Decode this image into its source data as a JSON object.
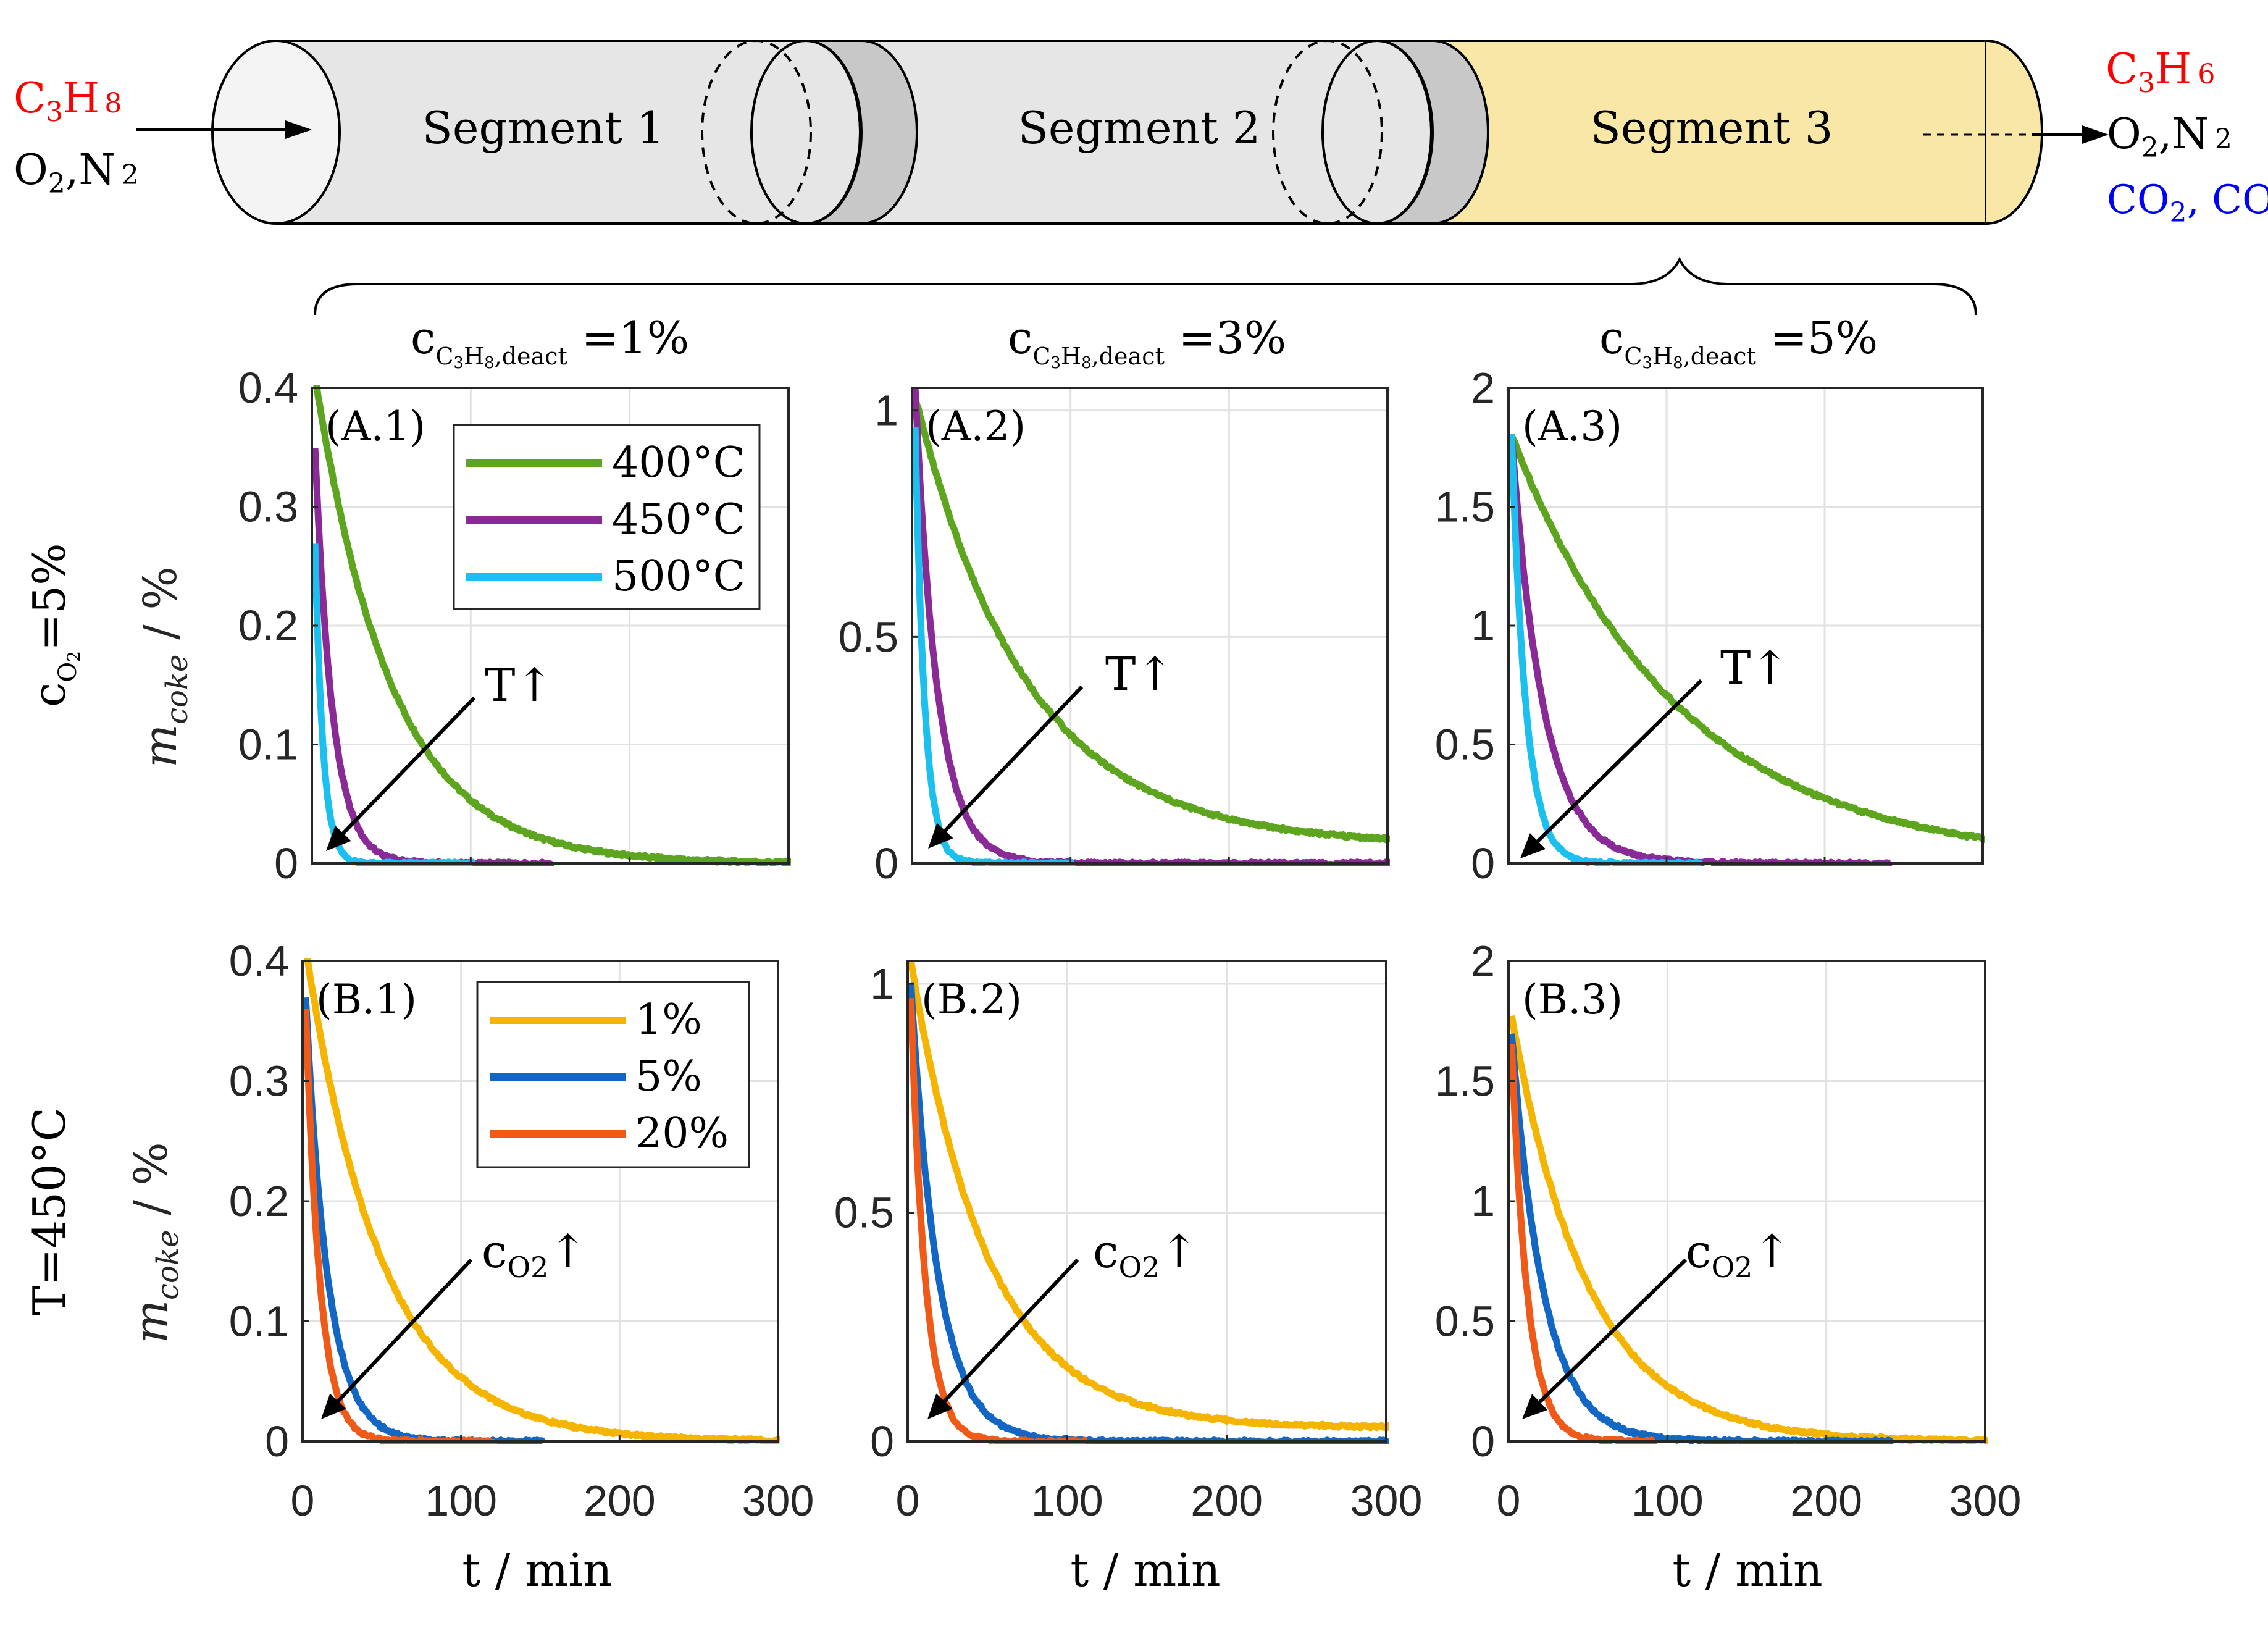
{
  "reactor": {
    "inlet": {
      "line1_main": "C",
      "line1_sub": "3",
      "line1_main2": "H",
      "line1_sub2": "8",
      "line2_main": "O",
      "line2_sub": "2",
      "line2_rest": ",N",
      "line2_sub2": "2"
    },
    "outlet": {
      "product_main": "C",
      "product_sub": "3",
      "product_main2": "H",
      "product_sub2": "6",
      "carrier_main": "O",
      "carrier_sub": "2",
      "carrier_rest": ",N",
      "carrier_sub2": "2",
      "oxides_main": "CO",
      "oxides_sub": "2",
      "oxides_rest": ", CO"
    },
    "segments": [
      "Segment 1",
      "Segment 2",
      "Segment 3"
    ],
    "colors": {
      "segment_grey": "#e6e6e6",
      "segment_dark": "#c8c8c8",
      "segment_active": "#f8e7a6",
      "red_text": "#ff0000",
      "blue_text": "#0000ff"
    }
  },
  "column_headers": [
    {
      "main": "c",
      "sub": "C",
      "sub2": "3",
      "sub3": "H",
      "sub4": "8",
      "sub5": ",deact",
      "value": " =1%"
    },
    {
      "main": "c",
      "sub": "C",
      "sub2": "3",
      "sub3": "H",
      "sub4": "8",
      "sub5": ",deact",
      "value": " =3%"
    },
    {
      "main": "c",
      "sub": "C",
      "sub2": "3",
      "sub3": "H",
      "sub4": "8",
      "sub5": ",deact",
      "value": " =5%"
    }
  ],
  "row_labels": [
    {
      "main": "c",
      "sub": "O",
      "sub2": "2",
      "value": "=5%"
    },
    {
      "text": "T=450°C"
    }
  ],
  "axis_labels": {
    "ylabel_main": "m",
    "ylabel_sub": "coke",
    "ylabel_unit": " / %",
    "xlabel": "t / min"
  },
  "annotations": {
    "top_row": "T↑",
    "bottom_row_main": "c",
    "bottom_row_sub": "O2",
    "bottom_row_arrow": "↑"
  },
  "chart_data": [
    {
      "id": "A.1",
      "type": "line",
      "label": "(A.1)",
      "ylim": [
        0,
        0.4
      ],
      "yticks": [
        0,
        0.1,
        0.2,
        0.3,
        0.4
      ],
      "ytick_labels": [
        "0",
        "0.1",
        "0.2",
        "0.3",
        "0.4"
      ],
      "xlim": [
        0,
        300
      ],
      "xticks": [
        0,
        100,
        200,
        300
      ],
      "xtick_labels": [],
      "series": [
        {
          "name": "400°C",
          "color": "#5ea51f",
          "y0": 0.41,
          "tau": 48,
          "tmax": 300
        },
        {
          "name": "450°C",
          "color": "#8a2a96",
          "y0": 0.35,
          "tau": 11,
          "tmax": 150
        },
        {
          "name": "500°C",
          "color": "#1cc0ee",
          "y0": 0.27,
          "tau": 5,
          "tmax": 100
        }
      ],
      "legend": {
        "position": "top-right",
        "entries": [
          "400°C",
          "450°C",
          "500°C"
        ]
      }
    },
    {
      "id": "A.2",
      "type": "line",
      "label": "(A.2)",
      "ylim": [
        0,
        1.05
      ],
      "yticks": [
        0,
        0.5,
        1
      ],
      "ytick_labels": [
        "0",
        "0.5",
        "1"
      ],
      "xlim": [
        0,
        300
      ],
      "xticks": [
        0,
        100,
        200,
        300
      ],
      "xtick_labels": [],
      "series": [
        {
          "name": "400°C",
          "color": "#5ea51f",
          "y0": 1.03,
          "tau": 70,
          "tmax": 300,
          "floor": 0.04
        },
        {
          "name": "450°C",
          "color": "#8a2a96",
          "y0": 1.05,
          "tau": 14,
          "tmax": 300
        },
        {
          "name": "500°C",
          "color": "#1cc0ee",
          "y0": 0.96,
          "tau": 6,
          "tmax": 100
        }
      ]
    },
    {
      "id": "A.3",
      "type": "line",
      "label": "(A.3)",
      "ylim": [
        0,
        2
      ],
      "yticks": [
        0,
        0.5,
        1,
        1.5,
        2
      ],
      "ytick_labels": [
        "0",
        "0.5",
        "1",
        "1.5",
        "2"
      ],
      "xlim": [
        0,
        300
      ],
      "xticks": [
        0,
        100,
        200,
        300
      ],
      "xtick_labels": [],
      "series": [
        {
          "name": "400°C",
          "color": "#5ea51f",
          "y0": 1.8,
          "tau": 105,
          "tmax": 300
        },
        {
          "name": "450°C",
          "color": "#8a2a96",
          "y0": 1.8,
          "tau": 20,
          "tmax": 240
        },
        {
          "name": "500°C",
          "color": "#1cc0ee",
          "y0": 1.8,
          "tau": 9,
          "tmax": 120
        }
      ]
    },
    {
      "id": "B.1",
      "type": "line",
      "label": "(B.1)",
      "ylim": [
        0,
        0.4
      ],
      "yticks": [
        0,
        0.1,
        0.2,
        0.3,
        0.4
      ],
      "ytick_labels": [
        "0",
        "0.1",
        "0.2",
        "0.3",
        "0.4"
      ],
      "xlim": [
        0,
        300
      ],
      "xticks": [
        0,
        100,
        200,
        300
      ],
      "xtick_labels": [
        "0",
        "100",
        "200",
        "300"
      ],
      "series": [
        {
          "name": "1%",
          "color": "#f5b400",
          "y0": 0.41,
          "tau": 48,
          "tmax": 300
        },
        {
          "name": "5%",
          "color": "#1266c4",
          "y0": 0.37,
          "tau": 14,
          "tmax": 150
        },
        {
          "name": "20%",
          "color": "#f05a18",
          "y0": 0.36,
          "tau": 9,
          "tmax": 120
        }
      ],
      "legend": {
        "position": "top-right",
        "entries": [
          "1%",
          "5%",
          "20%"
        ]
      }
    },
    {
      "id": "B.2",
      "type": "line",
      "label": "(B.2)",
      "ylim": [
        0,
        1.05
      ],
      "yticks": [
        0,
        0.5,
        1
      ],
      "ytick_labels": [
        "0",
        "0.5",
        "1"
      ],
      "xlim": [
        0,
        300
      ],
      "xticks": [
        0,
        100,
        200,
        300
      ],
      "xtick_labels": [
        "0",
        "100",
        "200",
        "300"
      ],
      "series": [
        {
          "name": "1%",
          "color": "#f5b400",
          "y0": 1.05,
          "tau": 48,
          "tmax": 300,
          "floor": 0.03
        },
        {
          "name": "5%",
          "color": "#1266c4",
          "y0": 1.0,
          "tau": 17,
          "tmax": 300
        },
        {
          "name": "20%",
          "color": "#f05a18",
          "y0": 0.97,
          "tau": 9,
          "tmax": 110
        }
      ]
    },
    {
      "id": "B.3",
      "type": "line",
      "label": "(B.3)",
      "ylim": [
        0,
        2
      ],
      "yticks": [
        0,
        0.5,
        1,
        1.5,
        2
      ],
      "ytick_labels": [
        "0",
        "0.5",
        "1",
        "1.5",
        "2"
      ],
      "xlim": [
        0,
        300
      ],
      "xticks": [
        0,
        100,
        200,
        300
      ],
      "xtick_labels": [
        "0",
        "100",
        "200",
        "300"
      ],
      "series": [
        {
          "name": "1%",
          "color": "#f5b400",
          "y0": 1.77,
          "tau": 48,
          "tmax": 300
        },
        {
          "name": "5%",
          "color": "#1266c4",
          "y0": 1.7,
          "tau": 20,
          "tmax": 240
        },
        {
          "name": "20%",
          "color": "#f05a18",
          "y0": 1.65,
          "tau": 10,
          "tmax": 90
        }
      ]
    }
  ]
}
